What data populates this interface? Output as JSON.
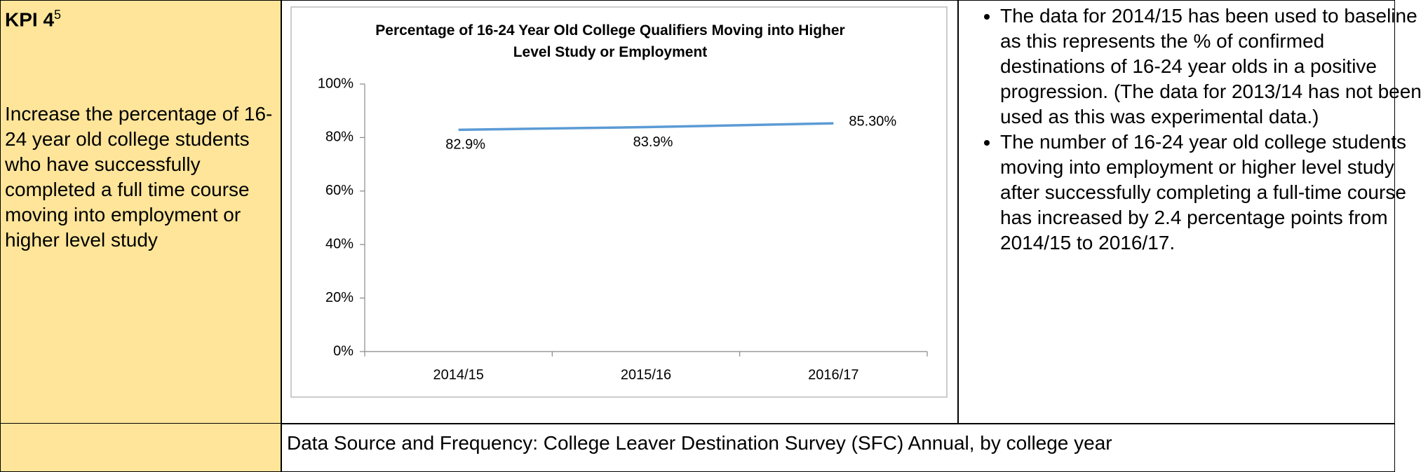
{
  "kpi": {
    "title": "KPI 4",
    "footnote": "5",
    "description": "Increase the percentage of 16-24 year old college students who have successfully completed a full time course moving into employment or higher level study"
  },
  "chart_data": {
    "type": "line",
    "title": "Percentage of 16-24 Year Old College Qualifiers Moving into Higher Level Study or Employment",
    "categories": [
      "2014/15",
      "2015/16",
      "2016/17"
    ],
    "values": [
      82.9,
      83.9,
      85.3
    ],
    "value_labels": [
      "82.9%",
      "83.9%",
      "85.30%"
    ],
    "color": "#5b9bd5",
    "ylim": [
      0,
      100
    ],
    "yticks": [
      {
        "value": 0,
        "label": "0%"
      },
      {
        "value": 20,
        "label": "20%"
      },
      {
        "value": 40,
        "label": "40%"
      },
      {
        "value": 60,
        "label": "60%"
      },
      {
        "value": 80,
        "label": "80%"
      },
      {
        "value": 100,
        "label": "100%"
      }
    ]
  },
  "notes": [
    "The data for 2014/15 has been used to baseline as this represents the % of confirmed destinations of 16-24 year olds in a positive progression. (The data for 2013/14 has not been used as this was experimental data.)",
    "The number of 16-24 year old college students moving into employment or higher level study after successfully completing a full-time course has increased by 2.4 percentage points from 2014/15 to 2016/17."
  ],
  "data_source": "Data Source and Frequency: College Leaver Destination Survey (SFC)  Annual, by college year"
}
